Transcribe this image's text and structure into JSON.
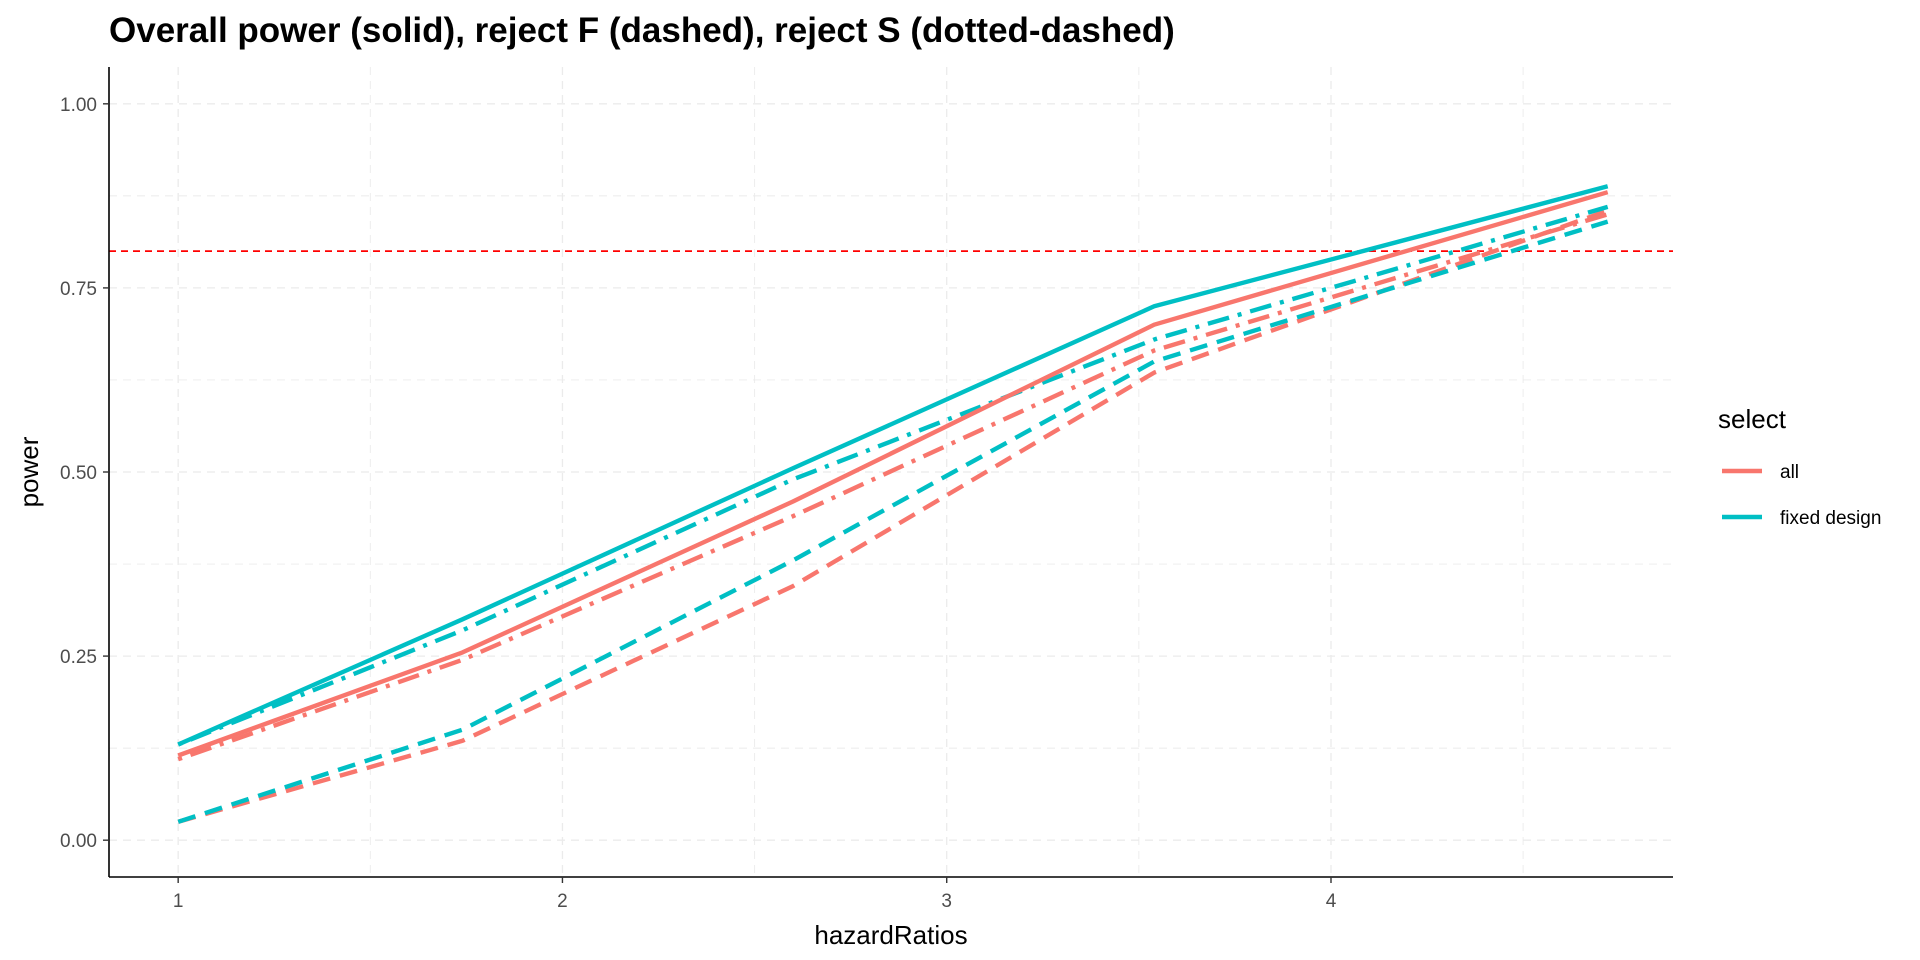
{
  "chart_data": {
    "type": "line",
    "title": "Overall power (solid), reject F (dashed), reject S (dotted-dashed)",
    "xlabel": "hazardRatios",
    "ylabel": "power",
    "xlim": [
      0.82,
      4.89
    ],
    "ylim": [
      -0.05,
      1.05
    ],
    "x_ticks": [
      1,
      2,
      3,
      4
    ],
    "x_tick_labels": [
      "1",
      "2",
      "3",
      "4"
    ],
    "y_ticks": [
      0,
      0.25,
      0.5,
      0.75,
      1
    ],
    "y_tick_labels": [
      "0.00",
      "0.25",
      "0.50",
      "0.75",
      "1.00"
    ],
    "grid": true,
    "reference_line": {
      "y": 0.8,
      "color": "#ff0000",
      "style": "dashed"
    },
    "legend": {
      "title": "select",
      "position": "right",
      "entries": [
        {
          "label": "all",
          "color": "#F8766D"
        },
        {
          "label": "fixed design",
          "color": "#00BFC4"
        }
      ]
    },
    "x": [
      1,
      1.74,
      2.6,
      3.54,
      4.72
    ],
    "series": [
      {
        "group": "all",
        "style": "solid",
        "color": "#F8766D",
        "values": [
          0.115,
          0.255,
          0.46,
          0.7,
          0.88
        ]
      },
      {
        "group": "all",
        "style": "dashed",
        "color": "#F8766D",
        "values": [
          0.025,
          0.135,
          0.345,
          0.635,
          0.855
        ]
      },
      {
        "group": "all",
        "style": "dotdash",
        "color": "#F8766D",
        "values": [
          0.11,
          0.245,
          0.44,
          0.665,
          0.85
        ]
      },
      {
        "group": "fixed design",
        "style": "solid",
        "color": "#00BFC4",
        "values": [
          0.13,
          0.3,
          0.505,
          0.725,
          0.888
        ]
      },
      {
        "group": "fixed design",
        "style": "dashed",
        "color": "#00BFC4",
        "values": [
          0.025,
          0.15,
          0.38,
          0.65,
          0.84
        ]
      },
      {
        "group": "fixed design",
        "style": "dotdash",
        "color": "#00BFC4",
        "values": [
          0.13,
          0.285,
          0.49,
          0.68,
          0.86
        ]
      }
    ]
  }
}
